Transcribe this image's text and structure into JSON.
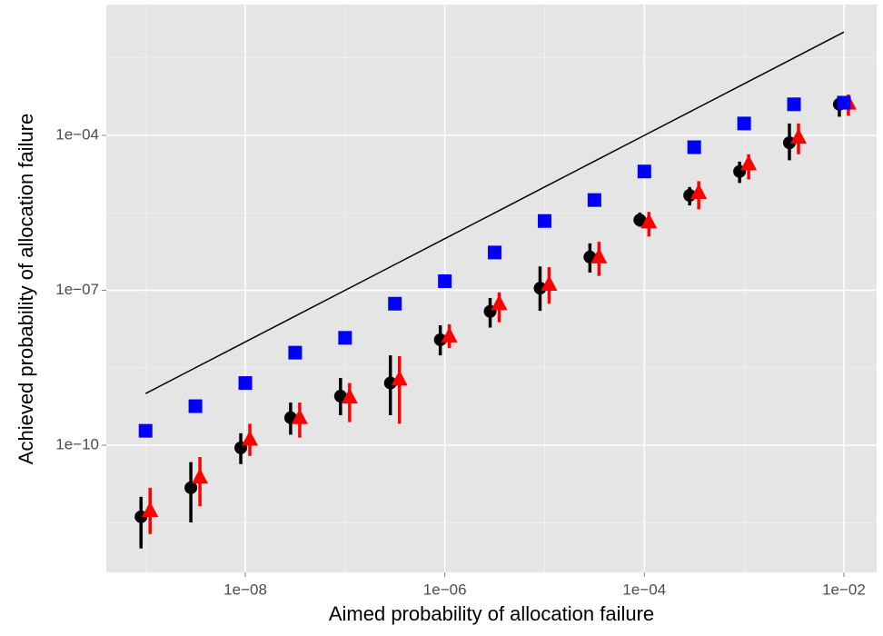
{
  "chart_data": {
    "type": "scatter",
    "x_label": "Aimed probability of allocation failure",
    "y_label": "Achieved probability of allocation failure",
    "log_x": true,
    "log_y": true,
    "grid": true,
    "x": [
      1e-09,
      3.16e-09,
      1e-08,
      3.16e-08,
      1e-07,
      3.16e-07,
      1e-06,
      3.16e-06,
      1e-05,
      3.16e-05,
      0.0001,
      0.000316,
      0.001,
      0.00316,
      0.01
    ],
    "series": [
      {
        "shape": "line",
        "color": "#000000",
        "values": [
          1e-09,
          3.16e-09,
          1e-08,
          3.16e-08,
          1e-07,
          3.16e-07,
          1e-06,
          3.16e-06,
          1e-05,
          3.16e-05,
          0.0001,
          0.000316,
          0.001,
          0.00316,
          0.01
        ]
      },
      {
        "shape": "circle",
        "color": "#000000",
        "dodge": -1,
        "values": [
          4.1e-12,
          1.5e-11,
          8.9e-11,
          3.4e-10,
          8.9e-10,
          1.6e-09,
          1.1e-08,
          3.9e-08,
          1.1e-07,
          4.4e-07,
          2.3e-06,
          6.9e-06,
          2e-05,
          7.2e-05,
          0.0004
        ],
        "error_low": [
          1e-12,
          3.2e-12,
          4.3e-11,
          1.6e-10,
          3.8e-10,
          3.8e-10,
          5.5e-09,
          1.9e-08,
          4e-08,
          2.2e-07,
          1.7e-06,
          4.4e-06,
          1.2e-05,
          3.3e-05,
          0.00023
        ],
        "error_high": [
          1e-11,
          4.7e-11,
          1.7e-10,
          6.7e-10,
          2e-09,
          5.5e-09,
          2.1e-08,
          7.1e-08,
          2.9e-07,
          8.1e-07,
          3.2e-06,
          1e-05,
          3.1e-05,
          0.00017,
          0.00055
        ]
      },
      {
        "shape": "triangle",
        "color": "#ff0000",
        "dodge": 1,
        "values": [
          5.4e-12,
          2.4e-11,
          1.3e-10,
          3.4e-10,
          8.5e-10,
          1.9e-09,
          1.3e-08,
          5.5e-08,
          1.3e-07,
          4.4e-07,
          2.1e-06,
          7.8e-06,
          2.8e-05,
          9.2e-05,
          0.00042
        ],
        "error_low": [
          1.9e-12,
          6.6e-12,
          6.2e-11,
          1.4e-10,
          2.8e-10,
          2.6e-10,
          7.6e-09,
          2.4e-08,
          5.5e-08,
          1.9e-07,
          1.1e-06,
          3.7e-06,
          1.4e-05,
          4.3e-05,
          0.00024
        ],
        "error_high": [
          1.5e-11,
          5.9e-11,
          2.6e-10,
          6.7e-10,
          1.6e-09,
          5.3e-09,
          2.2e-08,
          9.1e-08,
          2.8e-07,
          8.7e-07,
          3.3e-06,
          1.3e-05,
          4.3e-05,
          0.00017,
          0.00062
        ]
      },
      {
        "shape": "square",
        "color": "#0000ff",
        "values": [
          1.9e-10,
          5.7e-10,
          1.6e-09,
          6.2e-09,
          1.2e-08,
          5.5e-08,
          1.5e-07,
          5.4e-07,
          2.2e-06,
          5.6e-06,
          2e-05,
          5.9e-05,
          0.00017,
          0.0004,
          0.00043
        ]
      }
    ],
    "xlim": [
      4.04e-10,
      0.0213
    ],
    "ylim": [
      3.44e-13,
      0.0342
    ],
    "xticks": [
      {
        "value": 1e-08,
        "label": "1e−08"
      },
      {
        "value": 1e-06,
        "label": "1e−06"
      },
      {
        "value": 0.0001,
        "label": "1e−04"
      },
      {
        "value": 0.01,
        "label": "1e−02"
      }
    ],
    "yticks": [
      {
        "value": 1e-10,
        "label": "1e−10"
      },
      {
        "value": 1e-07,
        "label": "1e−07"
      },
      {
        "value": 0.0001,
        "label": "1e−04"
      }
    ],
    "x_minor_ticks": [
      1e-09,
      1e-07,
      1e-05,
      0.001
    ],
    "y_minor_ticks": [
      3.16e-12,
      3.16e-09,
      3.16e-06,
      0.00316
    ]
  }
}
